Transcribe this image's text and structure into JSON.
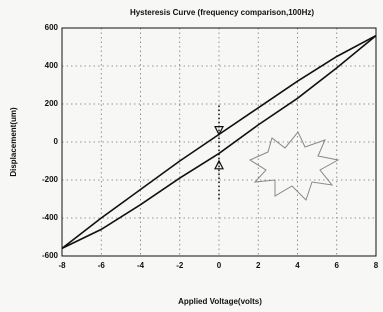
{
  "chart_data": {
    "type": "line",
    "title": "Hysteresis Curve (frequency comparison,100Hz)",
    "x_label": "Applied Voltage(volts)",
    "y_label": "Displacement(um)",
    "x": [
      -8,
      -6,
      -4,
      -2,
      0,
      2,
      4,
      6,
      8
    ],
    "series": [
      {
        "color": "#111111",
        "values": [
          -560,
          -400,
          -250,
          -100,
          40,
          180,
          320,
          450,
          560
        ]
      },
      {
        "color": "#111111",
        "values": [
          -560,
          -460,
          -330,
          -190,
          -60,
          90,
          230,
          390,
          560
        ]
      }
    ],
    "markers": [
      {
        "x": 0,
        "y": 60
      },
      {
        "x": 0,
        "y": -120
      }
    ],
    "xlim": [
      -8,
      8
    ],
    "xticks": [
      -8,
      -6,
      -4,
      -2,
      0,
      2,
      4,
      6,
      8
    ],
    "ylim": [
      -600,
      600
    ],
    "yticks": [
      -600,
      -400,
      -200,
      0,
      200,
      400,
      600
    ],
    "grid": true
  }
}
